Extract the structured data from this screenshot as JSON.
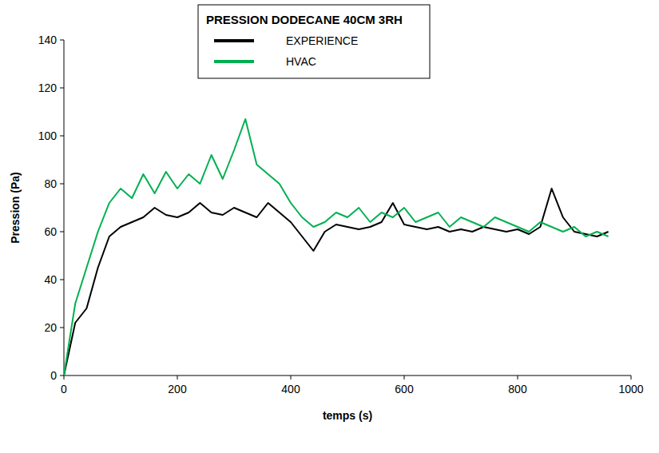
{
  "chart_data": {
    "type": "line",
    "title": "PRESSION DODECANE 40CM 3RH",
    "x_label": "temps (s)",
    "y_label": "Pression (Pa)",
    "x": [
      0,
      20,
      40,
      60,
      80,
      100,
      120,
      140,
      160,
      180,
      200,
      220,
      240,
      260,
      280,
      300,
      320,
      340,
      360,
      380,
      400,
      420,
      440,
      460,
      480,
      500,
      520,
      540,
      560,
      580,
      600,
      620,
      640,
      660,
      680,
      700,
      720,
      740,
      760,
      780,
      800,
      820,
      840,
      860,
      880,
      900,
      920,
      940,
      960
    ],
    "series": [
      {
        "name": "EXPERIENCE",
        "color": "#000000",
        "values": [
          0,
          22,
          28,
          45,
          58,
          62,
          64,
          66,
          70,
          67,
          66,
          68,
          72,
          68,
          67,
          70,
          68,
          66,
          72,
          68,
          64,
          58,
          52,
          60,
          63,
          62,
          61,
          62,
          64,
          72,
          63,
          62,
          61,
          62,
          60,
          61,
          60,
          62,
          61,
          60,
          61,
          59,
          62,
          78,
          66,
          60,
          59,
          58,
          60
        ]
      },
      {
        "name": "HVAC",
        "color": "#00b050",
        "values": [
          0,
          30,
          45,
          60,
          72,
          78,
          74,
          84,
          76,
          85,
          78,
          84,
          80,
          92,
          82,
          94,
          107,
          88,
          84,
          80,
          72,
          66,
          62,
          64,
          68,
          66,
          70,
          64,
          68,
          66,
          70,
          64,
          66,
          68,
          62,
          66,
          64,
          62,
          66,
          64,
          62,
          60,
          64,
          62,
          60,
          62,
          58,
          60,
          58
        ]
      }
    ],
    "xlim": [
      0,
      1000
    ],
    "xticks": [
      0,
      200,
      400,
      600,
      800,
      1000
    ],
    "ylim": [
      0,
      140
    ],
    "yticks": [
      0,
      20,
      40,
      60,
      80,
      100,
      120,
      140
    ],
    "grid": false,
    "legend": "top"
  }
}
